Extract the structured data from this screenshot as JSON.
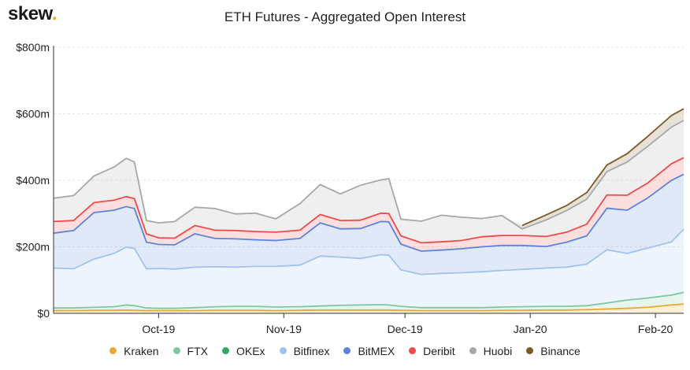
{
  "brand": {
    "name": "skew",
    "dot": "."
  },
  "chart_data": {
    "type": "area",
    "stacked": true,
    "title": "ETH Futures - Aggregated Open Interest",
    "xlabel": "",
    "ylabel": "",
    "ylim": [
      0,
      800
    ],
    "y_ticks": [
      "$0",
      "$200m",
      "$400m",
      "$600m",
      "$800m"
    ],
    "y_tick_values": [
      0,
      200,
      400,
      600,
      800
    ],
    "x_ticks": [
      {
        "label": "Oct-19",
        "date": "2019-10-01"
      },
      {
        "label": "Nov-19",
        "date": "2019-11-01"
      },
      {
        "label": "Dec-19",
        "date": "2019-12-01"
      },
      {
        "label": "Jan-20",
        "date": "2020-01-01"
      },
      {
        "label": "Feb-20",
        "date": "2020-02-01"
      }
    ],
    "grid": true,
    "legend_position": "bottom",
    "x": [
      "2019-09-05",
      "2019-09-10",
      "2019-09-15",
      "2019-09-20",
      "2019-09-23",
      "2019-09-25",
      "2019-09-28",
      "2019-10-01",
      "2019-10-05",
      "2019-10-10",
      "2019-10-15",
      "2019-10-20",
      "2019-10-25",
      "2019-10-30",
      "2019-11-05",
      "2019-11-10",
      "2019-11-15",
      "2019-11-20",
      "2019-11-25",
      "2019-11-27",
      "2019-11-30",
      "2019-12-05",
      "2019-12-10",
      "2019-12-15",
      "2019-12-20",
      "2019-12-25",
      "2019-12-30",
      "2020-01-05",
      "2020-01-10",
      "2020-01-15",
      "2020-01-20",
      "2020-01-25",
      "2020-01-30",
      "2020-02-05",
      "2020-02-08"
    ],
    "series": [
      {
        "name": "Kraken",
        "color": "#e9a933",
        "values": [
          8,
          8,
          9,
          9,
          10,
          9,
          8,
          8,
          8,
          8,
          9,
          9,
          9,
          8,
          9,
          10,
          10,
          10,
          10,
          10,
          9,
          8,
          8,
          8,
          8,
          9,
          9,
          10,
          10,
          11,
          13,
          15,
          18,
          25,
          28
        ]
      },
      {
        "name": "FTX",
        "color": "#7ec8a0",
        "values": [
          8,
          8,
          9,
          11,
          15,
          14,
          8,
          7,
          7,
          9,
          11,
          12,
          12,
          11,
          11,
          12,
          14,
          15,
          16,
          15,
          12,
          9,
          9,
          9,
          9,
          10,
          11,
          11,
          11,
          12,
          18,
          25,
          28,
          30,
          35
        ]
      },
      {
        "name": "OKEx",
        "color": "#2ea866",
        "values": [
          0,
          0,
          0,
          0,
          0,
          0,
          0,
          0,
          0,
          0,
          0,
          0,
          0,
          0,
          0,
          0,
          0,
          0,
          0,
          0,
          0,
          0,
          0,
          0,
          0,
          0,
          0,
          0,
          0,
          0,
          0,
          0,
          0,
          0,
          0
        ]
      },
      {
        "name": "Bitfinex",
        "color": "#9fc3ee",
        "values": [
          120,
          118,
          145,
          160,
          174,
          172,
          118,
          120,
          118,
          122,
          120,
          118,
          120,
          122,
          125,
          150,
          145,
          140,
          150,
          150,
          110,
          100,
          103,
          105,
          108,
          110,
          112,
          115,
          118,
          125,
          160,
          140,
          150,
          160,
          190
        ]
      },
      {
        "name": "BitMEX",
        "color": "#5b84d8",
        "values": [
          105,
          115,
          140,
          130,
          122,
          120,
          80,
          72,
          73,
          100,
          85,
          85,
          80,
          78,
          80,
          100,
          85,
          90,
          100,
          100,
          77,
          70,
          70,
          72,
          75,
          75,
          72,
          65,
          75,
          85,
          125,
          130,
          150,
          185,
          165
        ]
      },
      {
        "name": "Deribit",
        "color": "#ee4a4a",
        "values": [
          35,
          30,
          30,
          30,
          30,
          30,
          25,
          20,
          20,
          25,
          25,
          25,
          25,
          25,
          25,
          25,
          25,
          25,
          25,
          25,
          25,
          25,
          25,
          25,
          30,
          30,
          30,
          30,
          30,
          35,
          40,
          45,
          45,
          50,
          50
        ]
      },
      {
        "name": "Huobi",
        "color": "#a5a7ab",
        "values": [
          70,
          75,
          80,
          100,
          115,
          110,
          40,
          45,
          50,
          55,
          65,
          50,
          55,
          40,
          80,
          90,
          80,
          105,
          100,
          105,
          50,
          65,
          80,
          70,
          55,
          60,
          20,
          50,
          65,
          75,
          70,
          100,
          110,
          110,
          112
        ]
      },
      {
        "name": "Binance",
        "color": "#7a5a22",
        "values": [
          0,
          0,
          0,
          0,
          0,
          0,
          0,
          0,
          0,
          0,
          0,
          0,
          0,
          0,
          0,
          0,
          0,
          0,
          0,
          0,
          0,
          0,
          0,
          0,
          0,
          0,
          10,
          15,
          15,
          20,
          20,
          25,
          30,
          35,
          35
        ]
      }
    ]
  }
}
